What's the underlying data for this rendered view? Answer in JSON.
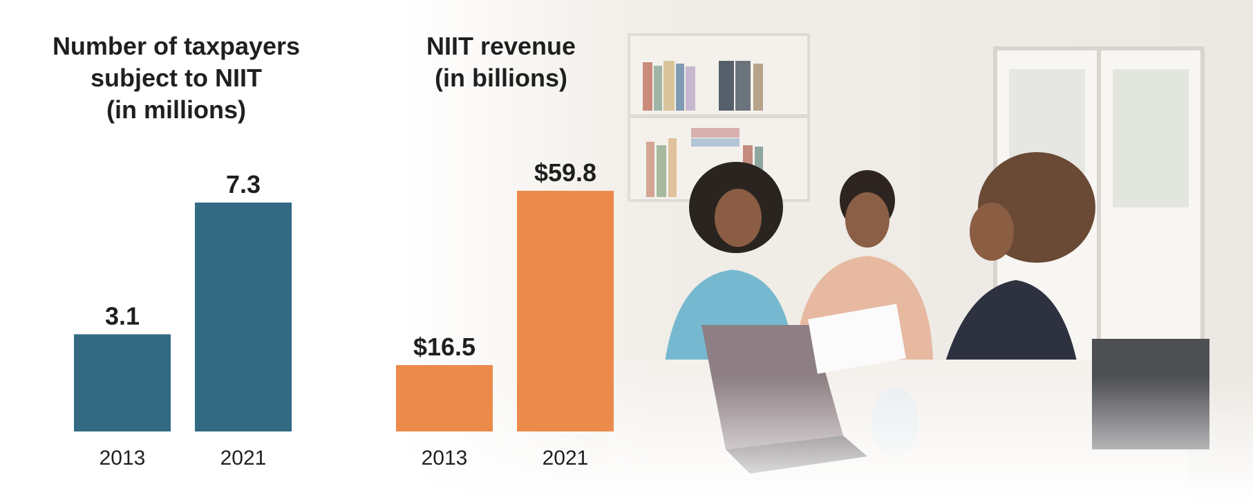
{
  "colors": {
    "taxpayers_bar": "#326a83",
    "revenue_bar": "#ec8a4c",
    "text": "#1f1f1f"
  },
  "photo": {
    "subject": "three people seated at a kitchen table with a laptop and paperwork"
  },
  "chart_data": [
    {
      "type": "bar",
      "title_lines": [
        "Number of taxpayers",
        "subject to NIIT",
        "(in millions)"
      ],
      "categories": [
        "2013",
        "2021"
      ],
      "values": [
        3.1,
        7.3
      ],
      "value_labels": [
        "3.1",
        "7.3"
      ],
      "ylim": [
        0,
        8.6
      ],
      "color": "#326a83",
      "grid": false
    },
    {
      "type": "bar",
      "title_lines": [
        "NIIT revenue",
        "(in billions)"
      ],
      "categories": [
        "2013",
        "2021"
      ],
      "values": [
        16.5,
        59.8
      ],
      "value_labels": [
        "$16.5",
        "$59.8"
      ],
      "ylim": [
        0,
        67.0
      ],
      "color": "#ec8a4c",
      "grid": false
    }
  ]
}
